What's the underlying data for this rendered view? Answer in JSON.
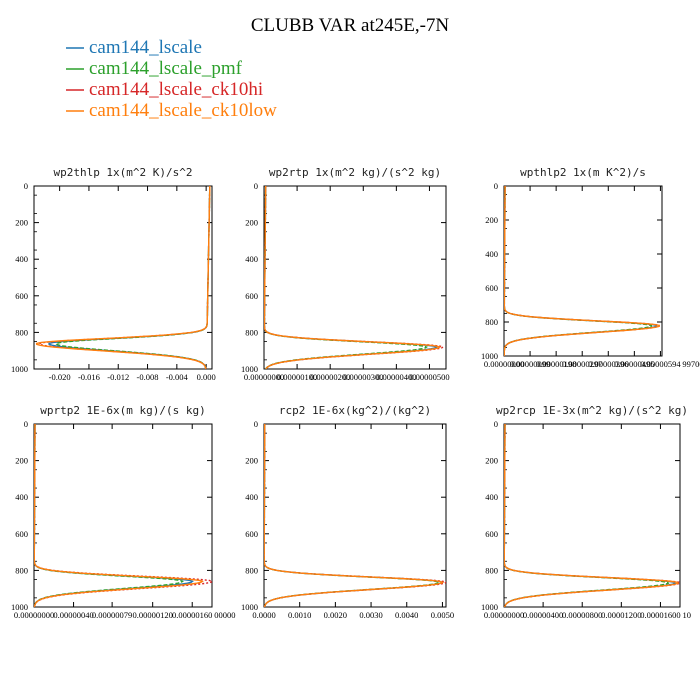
{
  "figure": {
    "title": "CLUBB VAR at245E,-7N"
  },
  "legend": [
    {
      "label": "cam144_lscale",
      "color": "#1f77b4"
    },
    {
      "label": "cam144_lscale_pmf",
      "color": "#2ca02c"
    },
    {
      "label": "cam144_lscale_ck10hi",
      "color": "#d62728"
    },
    {
      "label": "cam144_lscale_ck10low",
      "color": "#ff7f0e"
    }
  ],
  "chart_data": [
    {
      "type": "line",
      "title": "wp2thlp  1x(m^2 K)/s^2",
      "ylim": [
        1000,
        0
      ],
      "yticks": [
        "0",
        "200",
        "400",
        "600",
        "800",
        "1000"
      ],
      "xlim": [
        -0.0235,
        0.0008
      ],
      "xticks": [
        "-0.020",
        "-0.016",
        "-0.012",
        "-0.008",
        "-0.004",
        "0.000"
      ],
      "grid": false,
      "profile": {
        "type": "neg_surface",
        "peak_level": 862,
        "base": 0.0002,
        "top_value": 0.0005,
        "peaks": [
          -0.0215,
          -0.0205,
          -0.0228,
          -0.0232
        ]
      }
    },
    {
      "type": "line",
      "title": "wp2rtp  1x(m^2 kg)/(s^2 kg)",
      "ylim": [
        1000,
        0
      ],
      "yticks": [
        "0",
        "200",
        "400",
        "600",
        "800",
        "1000"
      ],
      "xlim": [
        0,
        5.5e-06
      ],
      "xticks": [
        "0.00000000",
        "0.00000100",
        "0.00000200",
        "0.00000300",
        "0.00000400",
        "0.00000500"
      ],
      "grid": false,
      "profile": {
        "type": "pos",
        "peak_level": 880,
        "base": 5e-08,
        "peaks": [
          5.2e-06,
          4.9e-06,
          5.4e-06,
          5.3e-06
        ]
      }
    },
    {
      "type": "line",
      "title": "wpthlp2  1x(m K^2)/s",
      "ylim": [
        1000,
        0
      ],
      "yticks": [
        "0",
        "200",
        "400",
        "600",
        "800",
        "1000"
      ],
      "xlim": [
        0,
        6e-06
      ],
      "xticks": [
        "0.00000000",
        "0.00000099",
        "0.00000198",
        "0.00000297",
        "0.00000396",
        "0.00000495",
        "0.00000594"
      ],
      "xtick_suffix": "997000",
      "grid": false,
      "profile": {
        "type": "pos",
        "peak_level": 822,
        "base": 4e-08,
        "peaks": [
          5.8e-06,
          5.6e-06,
          5.9e-06,
          5.9e-06
        ]
      }
    },
    {
      "type": "line",
      "title": "wprtp2  1E-6x(m kg)/(s kg)",
      "ylim": [
        1000,
        0
      ],
      "yticks": [
        "0",
        "200",
        "400",
        "600",
        "800",
        "1000"
      ],
      "xlim": [
        0,
        1.8e-06
      ],
      "xticks": [
        "0.00000000",
        "0.00000040",
        "0.00000079",
        "0.00000120",
        "0.00000160"
      ],
      "xtick_suffix": "00000",
      "grid": false,
      "profile": {
        "type": "pos",
        "peak_level": 860,
        "base": 1e-08,
        "peaks": [
          1.6e-06,
          1.5e-06,
          1.8e-06,
          1.7e-06
        ]
      }
    },
    {
      "type": "line",
      "title": "rcp2  1E-6x(kg^2)/(kg^2)",
      "ylim": [
        1000,
        0
      ],
      "yticks": [
        "0",
        "200",
        "400",
        "600",
        "800",
        "1000"
      ],
      "xlim": [
        0,
        0.0051
      ],
      "xticks": [
        "0.0000",
        "0.0010",
        "0.0020",
        "0.0030",
        "0.0040",
        "0.0050"
      ],
      "grid": false,
      "profile": {
        "type": "pos",
        "peak_level": 865,
        "base": 2e-05,
        "peaks": [
          0.005,
          0.0049,
          0.0051,
          0.005
        ]
      }
    },
    {
      "type": "line",
      "title": "wp2rcp  1E-3x(m^2 kg)/(s^2 kg)",
      "ylim": [
        1000,
        0
      ],
      "yticks": [
        "0",
        "200",
        "400",
        "600",
        "800",
        "1000"
      ],
      "xlim": [
        0,
        1.8e-05
      ],
      "xticks": [
        "0.00000000",
        "0.00000400",
        "0.00000800",
        "0.00001200",
        "0.00001600"
      ],
      "xtick_suffix": "10",
      "grid": false,
      "profile": {
        "type": "pos",
        "peak_level": 868,
        "base": 1e-07,
        "peaks": [
          1.75e-05,
          1.68e-05,
          1.8e-05,
          1.78e-05
        ]
      }
    }
  ]
}
